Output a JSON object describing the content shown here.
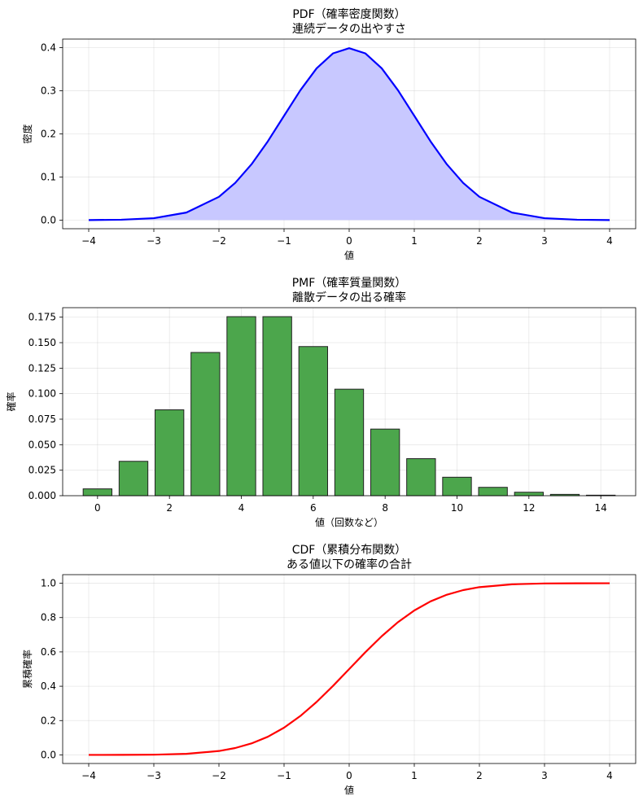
{
  "chart_data": [
    {
      "type": "area",
      "title": "PDF（確率密度関数）",
      "subtitle": "連続データの出やすさ",
      "xlabel": "値",
      "ylabel": "密度",
      "xlim": [
        -4.4,
        4.4
      ],
      "ylim": [
        -0.02,
        0.42
      ],
      "xticks": [
        -4,
        -3,
        -2,
        -1,
        0,
        1,
        2,
        3,
        4
      ],
      "yticks": [
        0.0,
        0.1,
        0.2,
        0.3,
        0.4
      ],
      "ytick_labels": [
        "0.0",
        "0.1",
        "0.2",
        "0.3",
        "0.4"
      ],
      "grid": true,
      "series": [
        {
          "x": [
            -4,
            -3.5,
            -3,
            -2.5,
            -2,
            -1.75,
            -1.5,
            -1.25,
            -1,
            -0.75,
            -0.5,
            -0.25,
            0,
            0.25,
            0.5,
            0.75,
            1,
            1.25,
            1.5,
            1.75,
            2,
            2.5,
            3,
            3.5,
            4
          ],
          "values": [
            0.0001,
            0.0009,
            0.0044,
            0.0175,
            0.054,
            0.0863,
            0.1295,
            0.1826,
            0.242,
            0.3011,
            0.3521,
            0.3867,
            0.3989,
            0.3867,
            0.3521,
            0.3011,
            0.242,
            0.1826,
            0.1295,
            0.0863,
            0.054,
            0.0175,
            0.0044,
            0.0009,
            0.0001
          ],
          "color": "#0000ff",
          "fill": "#c8c8ff"
        }
      ]
    },
    {
      "type": "bar",
      "title": "PMF（確率質量関数）",
      "subtitle": "離散データの出る確率",
      "xlabel": "値（回数など）",
      "ylabel": "確率",
      "xlim": [
        -0.97,
        14.97
      ],
      "ylim": [
        0,
        0.1843
      ],
      "xticks": [
        0,
        2,
        4,
        6,
        8,
        10,
        12,
        14
      ],
      "yticks": [
        0,
        0.025,
        0.05,
        0.075,
        0.1,
        0.125,
        0.15,
        0.175
      ],
      "ytick_labels": [
        "0.000",
        "0.025",
        "0.050",
        "0.075",
        "0.100",
        "0.125",
        "0.150",
        "0.175"
      ],
      "grid": true,
      "categories": [
        0,
        1,
        2,
        3,
        4,
        5,
        6,
        7,
        8,
        9,
        10,
        11,
        12,
        13,
        14
      ],
      "values": [
        0.0067,
        0.0337,
        0.0842,
        0.1404,
        0.1755,
        0.1755,
        0.1462,
        0.1044,
        0.0653,
        0.0363,
        0.0181,
        0.0082,
        0.0034,
        0.0013,
        0.0005
      ],
      "color": "#4ca64c",
      "edgecolor": "#222222"
    },
    {
      "type": "line",
      "title": "CDF（累積分布関数）",
      "subtitle": "ある値以下の確率の合計",
      "xlabel": "値",
      "ylabel": "累積確率",
      "xlim": [
        -4.4,
        4.4
      ],
      "ylim": [
        -0.05,
        1.05
      ],
      "xticks": [
        -4,
        -3,
        -2,
        -1,
        0,
        1,
        2,
        3,
        4
      ],
      "yticks": [
        0.0,
        0.2,
        0.4,
        0.6,
        0.8,
        1.0
      ],
      "ytick_labels": [
        "0.0",
        "0.2",
        "0.4",
        "0.6",
        "0.8",
        "1.0"
      ],
      "grid": true,
      "series": [
        {
          "x": [
            -4,
            -3.5,
            -3,
            -2.5,
            -2,
            -1.75,
            -1.5,
            -1.25,
            -1,
            -0.75,
            -0.5,
            -0.25,
            0,
            0.25,
            0.5,
            0.75,
            1,
            1.25,
            1.5,
            1.75,
            2,
            2.5,
            3,
            3.5,
            4
          ],
          "values": [
            0.0,
            0.0002,
            0.0013,
            0.0062,
            0.0228,
            0.0401,
            0.0668,
            0.1056,
            0.1587,
            0.2266,
            0.3085,
            0.4013,
            0.5,
            0.5987,
            0.6915,
            0.7734,
            0.8413,
            0.8944,
            0.9332,
            0.9599,
            0.9772,
            0.9938,
            0.9987,
            0.9998,
            1.0
          ],
          "color": "#ff0000"
        }
      ]
    }
  ]
}
